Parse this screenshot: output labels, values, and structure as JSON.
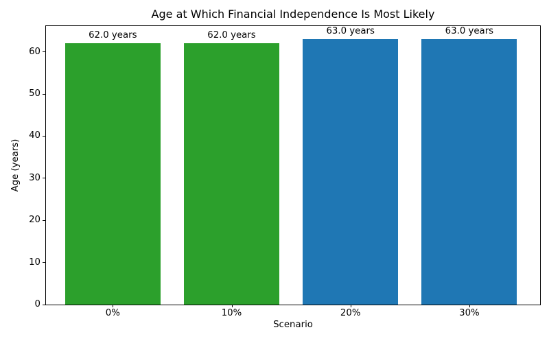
{
  "chart_data": {
    "type": "bar",
    "title": "Age at Which Financial Independence Is Most Likely",
    "xlabel": "Scenario",
    "ylabel": "Age (years)",
    "categories": [
      "0%",
      "10%",
      "20%",
      "30%"
    ],
    "values": [
      62.0,
      62.0,
      63.0,
      63.0
    ],
    "bar_labels": [
      "62.0 years",
      "62.0 years",
      "63.0 years",
      "63.0 years"
    ],
    "bar_colors": [
      "#2ca02c",
      "#2ca02c",
      "#1f77b4",
      "#1f77b4"
    ],
    "yticks": [
      0,
      10,
      20,
      30,
      40,
      50,
      60
    ],
    "ylim": [
      0,
      66.15
    ],
    "grid": false,
    "legend_position": "none",
    "background_color": "#ffffff",
    "spine_color": "#000000"
  }
}
